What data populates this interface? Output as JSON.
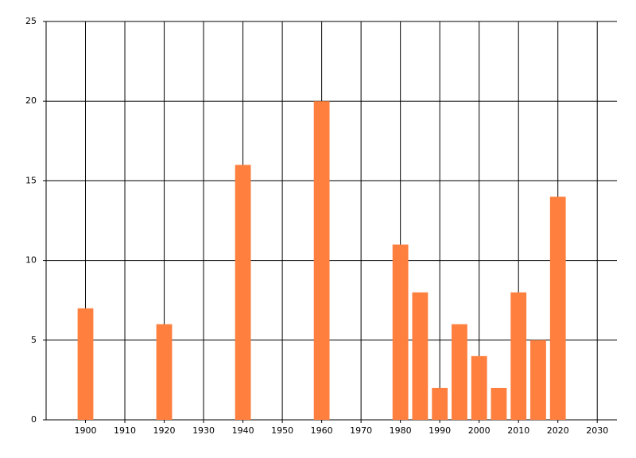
{
  "chart_data": {
    "type": "bar",
    "x": [
      1900,
      1920,
      1940,
      1960,
      1980,
      1985,
      1990,
      1995,
      2000,
      2005,
      2010,
      2015,
      2020
    ],
    "values": [
      7,
      6,
      16,
      20,
      11,
      8,
      2,
      6,
      4,
      2,
      8,
      5,
      14
    ],
    "color": "#ff7f3f",
    "xlim": [
      1890,
      2035
    ],
    "xticks": [
      1900,
      1910,
      1920,
      1930,
      1940,
      1950,
      1960,
      1970,
      1980,
      1990,
      2000,
      2010,
      2020,
      2030
    ],
    "ylim": [
      0,
      25
    ],
    "yticks": [
      0,
      5,
      10,
      15,
      20,
      25
    ],
    "grid": true
  }
}
